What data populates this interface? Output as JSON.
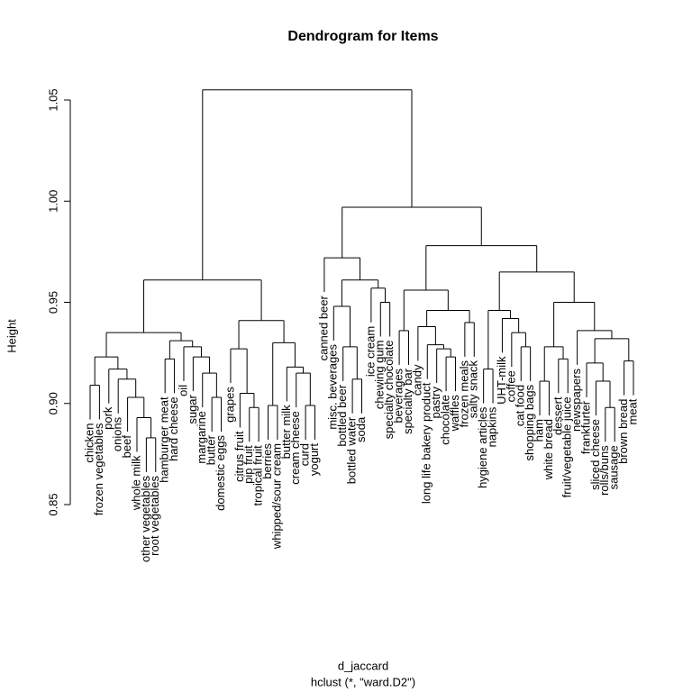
{
  "chart_data": {
    "type": "dendrogram",
    "title": "Dendrogram for Items",
    "ylabel": "Height",
    "xlabel": "d_jaccard",
    "subtitle": "hclust (*, \"ward.D2\")",
    "ylim": [
      0.85,
      1.05
    ],
    "yticks": [
      0.85,
      {
        "value": 0.9,
        "label": "0.90"
      },
      0.95,
      {
        "value": 1,
        "label": "1.00"
      },
      1.05
    ],
    "color": "#000000",
    "tree": {
      "height": 1.055,
      "children": [
        {
          "height": 0.961,
          "children": [
            {
              "height": 0.935,
              "children": [
                {
                  "height": 0.923,
                  "children": [
                    {
                      "height": 0.909,
                      "children": [
                        {
                          "label": "chicken"
                        },
                        {
                          "label": "frozen vegetables"
                        }
                      ]
                    },
                    {
                      "height": 0.917,
                      "children": [
                        {
                          "label": "pork"
                        },
                        {
                          "height": 0.912,
                          "children": [
                            {
                              "label": "onions"
                            },
                            {
                              "height": 0.903,
                              "children": [
                                {
                                  "label": "beef"
                                },
                                {
                                  "height": 0.893,
                                  "children": [
                                    {
                                      "label": "whole milk"
                                    },
                                    {
                                      "height": 0.883,
                                      "children": [
                                        {
                                          "label": "other vegetables"
                                        },
                                        {
                                          "label": "root vegetables"
                                        }
                                      ]
                                    }
                                  ]
                                }
                              ]
                            }
                          ]
                        }
                      ]
                    }
                  ]
                },
                {
                  "height": 0.931,
                  "children": [
                    {
                      "height": 0.922,
                      "children": [
                        {
                          "label": "hamburger meat"
                        },
                        {
                          "label": "hard cheese"
                        }
                      ]
                    },
                    {
                      "height": 0.928,
                      "children": [
                        {
                          "label": "oil"
                        },
                        {
                          "height": 0.923,
                          "children": [
                            {
                              "label": "sugar"
                            },
                            {
                              "height": 0.915,
                              "children": [
                                {
                                  "label": "margarine"
                                },
                                {
                                  "height": 0.903,
                                  "children": [
                                    {
                                      "label": "butter"
                                    },
                                    {
                                      "label": "domestic eggs"
                                    }
                                  ]
                                }
                              ]
                            }
                          ]
                        }
                      ]
                    }
                  ]
                }
              ]
            },
            {
              "height": 0.941,
              "children": [
                {
                  "height": 0.927,
                  "children": [
                    {
                      "label": "grapes"
                    },
                    {
                      "height": 0.905,
                      "children": [
                        {
                          "label": "citrus fruit"
                        },
                        {
                          "height": 0.898,
                          "children": [
                            {
                              "label": "pip fruit"
                            },
                            {
                              "label": "tropical fruit"
                            }
                          ]
                        }
                      ]
                    }
                  ]
                },
                {
                  "height": 0.93,
                  "children": [
                    {
                      "height": 0.899,
                      "children": [
                        {
                          "label": "berries"
                        },
                        {
                          "label": "whipped/sour cream"
                        }
                      ]
                    },
                    {
                      "height": 0.918,
                      "children": [
                        {
                          "label": "butter milk"
                        },
                        {
                          "height": 0.915,
                          "children": [
                            {
                              "label": "cream cheese"
                            },
                            {
                              "height": 0.899,
                              "children": [
                                {
                                  "label": "curd"
                                },
                                {
                                  "label": "yogurt"
                                }
                              ]
                            }
                          ]
                        }
                      ]
                    }
                  ]
                }
              ]
            }
          ]
        },
        {
          "height": 0.997,
          "children": [
            {
              "height": 0.972,
              "children": [
                {
                  "label": "canned beer"
                },
                {
                  "height": 0.961,
                  "children": [
                    {
                      "height": 0.948,
                      "children": [
                        {
                          "label": "misc. beverages"
                        },
                        {
                          "height": 0.928,
                          "children": [
                            {
                              "label": "bottled beer"
                            },
                            {
                              "height": 0.912,
                              "children": [
                                {
                                  "label": "bottled water"
                                },
                                {
                                  "label": "soda"
                                }
                              ]
                            }
                          ]
                        }
                      ]
                    },
                    {
                      "height": 0.957,
                      "children": [
                        {
                          "label": "ice cream"
                        },
                        {
                          "height": 0.95,
                          "children": [
                            {
                              "label": "chewing gum"
                            },
                            {
                              "label": "specialty chocolate"
                            }
                          ]
                        }
                      ]
                    }
                  ]
                }
              ]
            },
            {
              "height": 0.978,
              "children": [
                {
                  "height": 0.956,
                  "children": [
                    {
                      "height": 0.936,
                      "children": [
                        {
                          "label": "beverages"
                        },
                        {
                          "label": "specialty bar"
                        }
                      ]
                    },
                    {
                      "height": 0.946,
                      "children": [
                        {
                          "height": 0.938,
                          "children": [
                            {
                              "label": "candy"
                            },
                            {
                              "height": 0.929,
                              "children": [
                                {
                                  "label": "long life bakery product"
                                },
                                {
                                  "height": 0.927,
                                  "children": [
                                    {
                                      "label": "pastry"
                                    },
                                    {
                                      "height": 0.923,
                                      "children": [
                                        {
                                          "label": "chocolate"
                                        },
                                        {
                                          "label": "waffles"
                                        }
                                      ]
                                    }
                                  ]
                                }
                              ]
                            }
                          ]
                        },
                        {
                          "height": 0.94,
                          "children": [
                            {
                              "label": "frozen meals"
                            },
                            {
                              "label": "salty snack"
                            }
                          ]
                        }
                      ]
                    }
                  ]
                },
                {
                  "height": 0.965,
                  "children": [
                    {
                      "height": 0.946,
                      "children": [
                        {
                          "height": 0.917,
                          "children": [
                            {
                              "label": "hygiene articles"
                            },
                            {
                              "label": "napkins"
                            }
                          ]
                        },
                        {
                          "height": 0.942,
                          "children": [
                            {
                              "label": "UHT-milk"
                            },
                            {
                              "height": 0.935,
                              "children": [
                                {
                                  "label": "coffee"
                                },
                                {
                                  "height": 0.928,
                                  "children": [
                                    {
                                      "label": "cat food"
                                    },
                                    {
                                      "label": "shopping bags"
                                    }
                                  ]
                                }
                              ]
                            }
                          ]
                        }
                      ]
                    },
                    {
                      "height": 0.95,
                      "children": [
                        {
                          "height": 0.928,
                          "children": [
                            {
                              "height": 0.911,
                              "children": [
                                {
                                  "label": "ham"
                                },
                                {
                                  "label": "white bread"
                                }
                              ]
                            },
                            {
                              "height": 0.922,
                              "children": [
                                {
                                  "label": "dessert"
                                },
                                {
                                  "label": "fruit/vegetable juice"
                                }
                              ]
                            }
                          ]
                        },
                        {
                          "height": 0.936,
                          "children": [
                            {
                              "label": "newspapers"
                            },
                            {
                              "height": 0.932,
                              "children": [
                                {
                                  "height": 0.92,
                                  "children": [
                                    {
                                      "label": "frankfurter"
                                    },
                                    {
                                      "height": 0.911,
                                      "children": [
                                        {
                                          "label": "sliced cheese"
                                        },
                                        {
                                          "height": 0.898,
                                          "children": [
                                            {
                                              "label": "rolls/buns"
                                            },
                                            {
                                              "label": "sausage"
                                            }
                                          ]
                                        }
                                      ]
                                    }
                                  ]
                                },
                                {
                                  "height": 0.921,
                                  "children": [
                                    {
                                      "label": "brown bread"
                                    },
                                    {
                                      "label": "meat"
                                    }
                                  ]
                                }
                              ]
                            }
                          ]
                        }
                      ]
                    }
                  ]
                }
              ]
            }
          ]
        }
      ]
    }
  }
}
